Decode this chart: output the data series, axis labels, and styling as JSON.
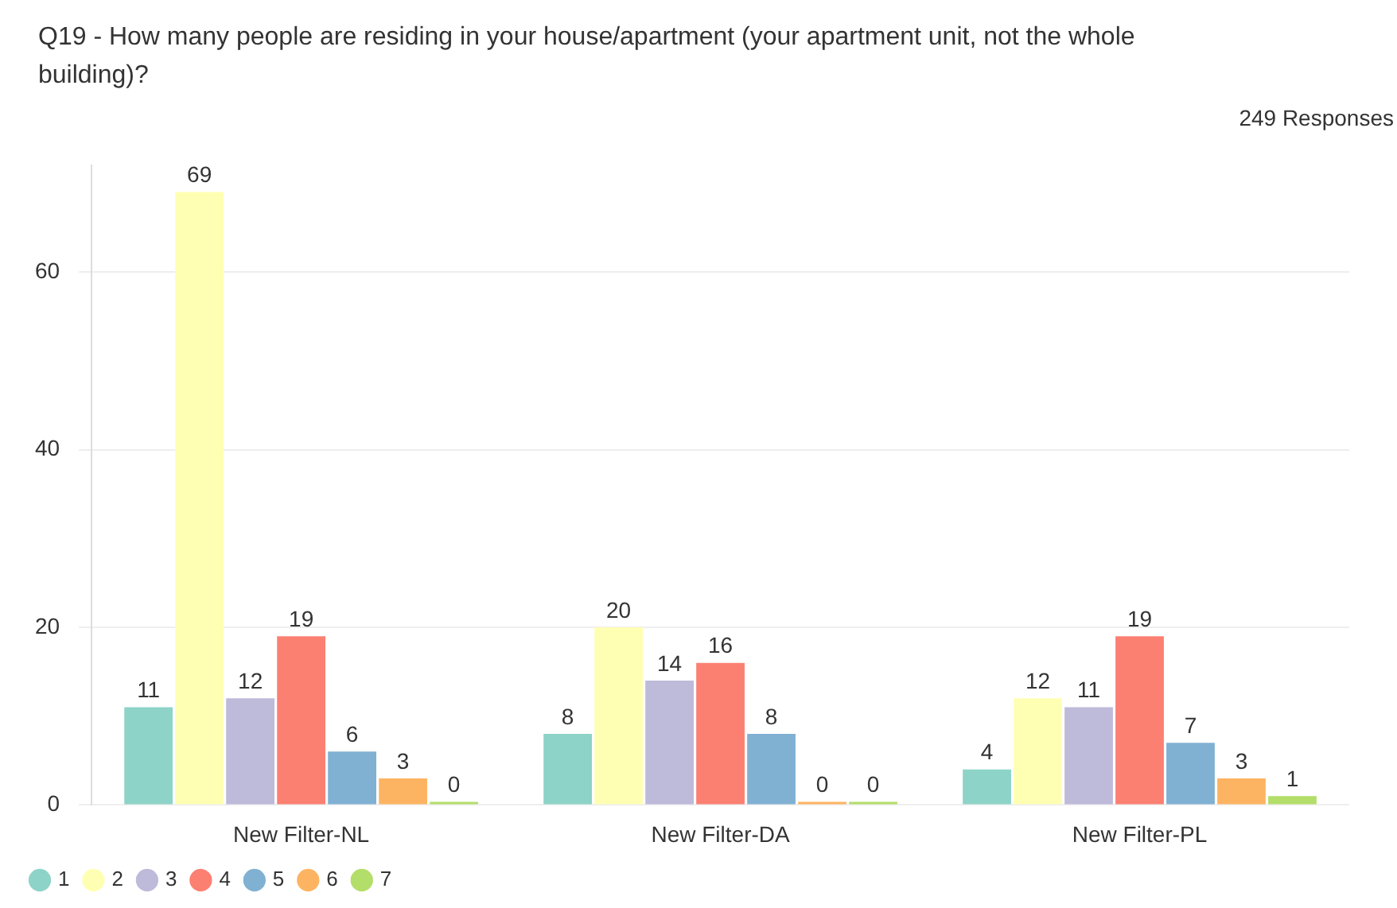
{
  "chart_data": {
    "type": "bar",
    "title": "Q19 - How many people are residing in your house/apartment (your apartment unit, not the whole building)?",
    "subtitle": "249 Responses",
    "categories": [
      "New Filter-NL",
      "New Filter-DA",
      "New Filter-PL"
    ],
    "series": [
      {
        "name": "1",
        "color": "#8dd3c7",
        "values": [
          11,
          8,
          4
        ]
      },
      {
        "name": "2",
        "color": "#ffffb3",
        "values": [
          69,
          20,
          12
        ]
      },
      {
        "name": "3",
        "color": "#bebada",
        "values": [
          12,
          14,
          11
        ]
      },
      {
        "name": "4",
        "color": "#fb8072",
        "values": [
          19,
          16,
          19
        ]
      },
      {
        "name": "5",
        "color": "#80b1d3",
        "values": [
          6,
          8,
          7
        ]
      },
      {
        "name": "6",
        "color": "#fdb462",
        "values": [
          3,
          0,
          3
        ]
      },
      {
        "name": "7",
        "color": "#b3de69",
        "values": [
          0,
          0,
          1
        ]
      }
    ],
    "ylim": [
      0,
      72
    ],
    "yticks": [
      0,
      20,
      40,
      60
    ],
    "grid": "y",
    "legend": "bottom left",
    "data_labels": true
  }
}
